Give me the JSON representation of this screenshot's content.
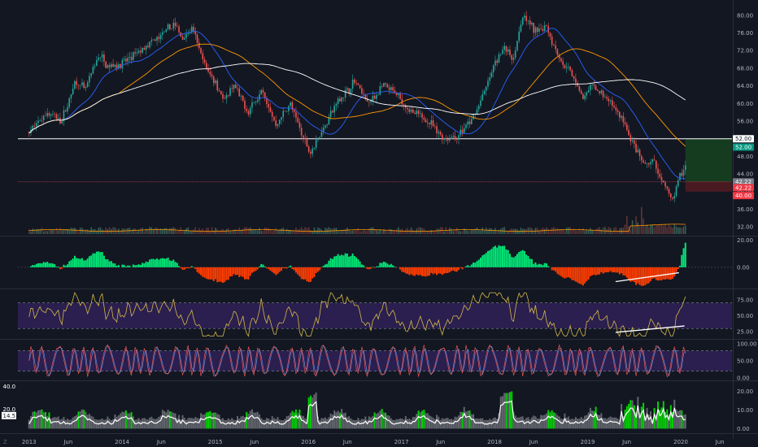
{
  "chart_data": {
    "type": "candlestick",
    "colors": {
      "background": "#131722",
      "up": "#26a69a",
      "down": "#ef5350",
      "sma_fast": "#2962ff",
      "sma_mid": "#ff9800",
      "sma_slow": "#ffffff",
      "volume": "#787b86",
      "macd_up": "#00e676",
      "macd_down": "#ff3d00",
      "rsi": "#d4b84a",
      "stoch_k": "#ef5350",
      "stoch_d": "#5b8bd9",
      "band_fill": "#2a1f4e",
      "target_zone": "#163c1f",
      "stop_zone": "#4a1a22",
      "resistance": "#ffffff"
    },
    "x_ticks": [
      "2013",
      "Jun",
      "2014",
      "Jun",
      "2015",
      "Jun",
      "2016",
      "Jun",
      "2017",
      "Jun",
      "2018",
      "Jun",
      "2019",
      "Jun",
      "2020",
      "Jun"
    ],
    "bottom_left_label": "Z",
    "price_panel": {
      "y_ticks": [
        "32.00",
        "36.00",
        "40.00",
        "44.00",
        "48.00",
        "52.00",
        "56.00",
        "60.00",
        "64.00",
        "68.00",
        "72.00",
        "76.00",
        "80.00"
      ],
      "ylim": [
        30,
        82
      ],
      "price_path": [
        [
          2013.0,
          53.5
        ],
        [
          2013.2,
          58.0
        ],
        [
          2013.35,
          56.0
        ],
        [
          2013.5,
          65.0
        ],
        [
          2013.6,
          63.0
        ],
        [
          2013.75,
          71.0
        ],
        [
          2013.85,
          68.5
        ],
        [
          2014.0,
          69.0
        ],
        [
          2014.2,
          72.0
        ],
        [
          2014.4,
          75.0
        ],
        [
          2014.55,
          78.0
        ],
        [
          2014.65,
          75.0
        ],
        [
          2014.75,
          77.0
        ],
        [
          2014.9,
          68.0
        ],
        [
          2015.0,
          65.0
        ],
        [
          2015.1,
          60.5
        ],
        [
          2015.2,
          64.0
        ],
        [
          2015.35,
          58.0
        ],
        [
          2015.5,
          63.0
        ],
        [
          2015.65,
          55.0
        ],
        [
          2015.8,
          60.0
        ],
        [
          2015.95,
          52.0
        ],
        [
          2016.02,
          49.0
        ],
        [
          2016.15,
          54.0
        ],
        [
          2016.3,
          60.0
        ],
        [
          2016.5,
          65.0
        ],
        [
          2016.65,
          60.0
        ],
        [
          2016.8,
          64.0
        ],
        [
          2016.95,
          62.0
        ],
        [
          2017.1,
          58.0
        ],
        [
          2017.3,
          56.0
        ],
        [
          2017.45,
          52.0
        ],
        [
          2017.6,
          52.5
        ],
        [
          2017.75,
          56.0
        ],
        [
          2017.9,
          63.0
        ],
        [
          2018.0,
          69.0
        ],
        [
          2018.1,
          73.0
        ],
        [
          2018.2,
          70.0
        ],
        [
          2018.3,
          80.0
        ],
        [
          2018.45,
          76.0
        ],
        [
          2018.55,
          78.0
        ],
        [
          2018.7,
          70.0
        ],
        [
          2018.85,
          66.0
        ],
        [
          2018.95,
          61.0
        ],
        [
          2019.05,
          64.0
        ],
        [
          2019.25,
          60.0
        ],
        [
          2019.38,
          56.0
        ],
        [
          2019.5,
          50.0
        ],
        [
          2019.6,
          46.0
        ],
        [
          2019.7,
          47.0
        ],
        [
          2019.8,
          42.0
        ],
        [
          2019.92,
          38.0
        ],
        [
          2019.98,
          43.0
        ],
        [
          2020.05,
          46.0
        ]
      ],
      "horizontal_lines": [
        {
          "label": "52.00",
          "value": 52.0,
          "tag_color": "#ffffff",
          "text_color": "#131722"
        },
        {
          "label": "42.22",
          "value": 42.22,
          "tag_color": "#787b86",
          "text_color": "#ffffff"
        }
      ],
      "price_tags": [
        {
          "label": "52.00",
          "value": 50.1,
          "color": "#089981"
        },
        {
          "label": "42.22",
          "value": 40.9,
          "color": "#f23645"
        },
        {
          "label": "40.00",
          "value": 39.1,
          "color": "#f23645"
        }
      ],
      "target_zone": {
        "x_start": 2020.05,
        "top": 52.0,
        "bottom": 42.22
      },
      "stop_zone": {
        "x_start": 2020.05,
        "top": 42.22,
        "bottom": 40.0
      }
    },
    "macd_panel": {
      "y_ticks": [
        "20.00",
        "0.00"
      ],
      "ylim": [
        -15,
        22
      ]
    },
    "rsi_panel": {
      "y_ticks": [
        "75.00",
        "50.00",
        "25.00"
      ],
      "ylim": [
        15,
        90
      ],
      "bands": [
        30,
        70
      ]
    },
    "stoch_panel": {
      "y_ticks": [
        "100.00",
        "50.00",
        "0.00"
      ],
      "ylim": [
        -5,
        110
      ],
      "bands": [
        20,
        80
      ]
    },
    "vol_panel": {
      "y_ticks": [
        "20.00",
        "10.00",
        "0.00"
      ],
      "ylim": [
        -2,
        25
      ],
      "left_tags": [
        {
          "label": "40.0",
          "value": 22.5,
          "bg": "#131722",
          "fg": "#ffffff"
        },
        {
          "label": "20.0",
          "value": 10.5,
          "bg": "#131722",
          "fg": "#ffffff"
        },
        {
          "label": "14.5",
          "value": 7.0,
          "bg": "#ffffff",
          "fg": "#131722"
        }
      ]
    },
    "divergence_lines": [
      {
        "panel": "macd",
        "from": [
          2019.3,
          -10.5
        ],
        "to": [
          2019.98,
          -4.0
        ]
      },
      {
        "panel": "rsi",
        "from": [
          2019.3,
          24
        ],
        "to": [
          2020.04,
          34
        ]
      }
    ]
  }
}
